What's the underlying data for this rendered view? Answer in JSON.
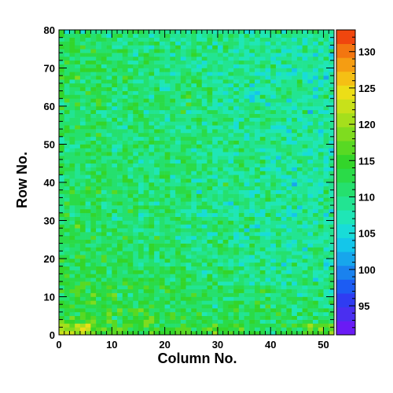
{
  "chart_data": {
    "type": "heatmap",
    "title": "",
    "xlabel": "Column No.",
    "ylabel": "Row No.",
    "x_range": [
      0,
      52
    ],
    "y_range": [
      0,
      80
    ],
    "x_ticks": [
      0,
      10,
      20,
      30,
      40,
      50
    ],
    "y_ticks": [
      0,
      10,
      20,
      30,
      40,
      50,
      60,
      70,
      80
    ],
    "n_columns": 52,
    "n_rows": 80,
    "z_range": [
      91,
      133
    ],
    "colorbar_ticks": [
      95,
      100,
      105,
      110,
      115,
      120,
      125,
      130
    ],
    "palette": [
      "#6a1bf5",
      "#4a2ff0",
      "#2f3cf2",
      "#1c5cf3",
      "#1a82ee",
      "#17a6ec",
      "#14c6ea",
      "#18dcd8",
      "#1fe6b6",
      "#22e492",
      "#25e06e",
      "#2adb48",
      "#33d52a",
      "#58d923",
      "#7fdc1f",
      "#a5df1c",
      "#c8e11a",
      "#ecde17",
      "#f5c014",
      "#f59d12",
      "#f37610",
      "#f0460e"
    ],
    "description_of_values": "Per-cell counts (approx. 95–130), mean ≈ 110; higher values concentrated at low row numbers and low column numbers, lower values at high column numbers."
  }
}
